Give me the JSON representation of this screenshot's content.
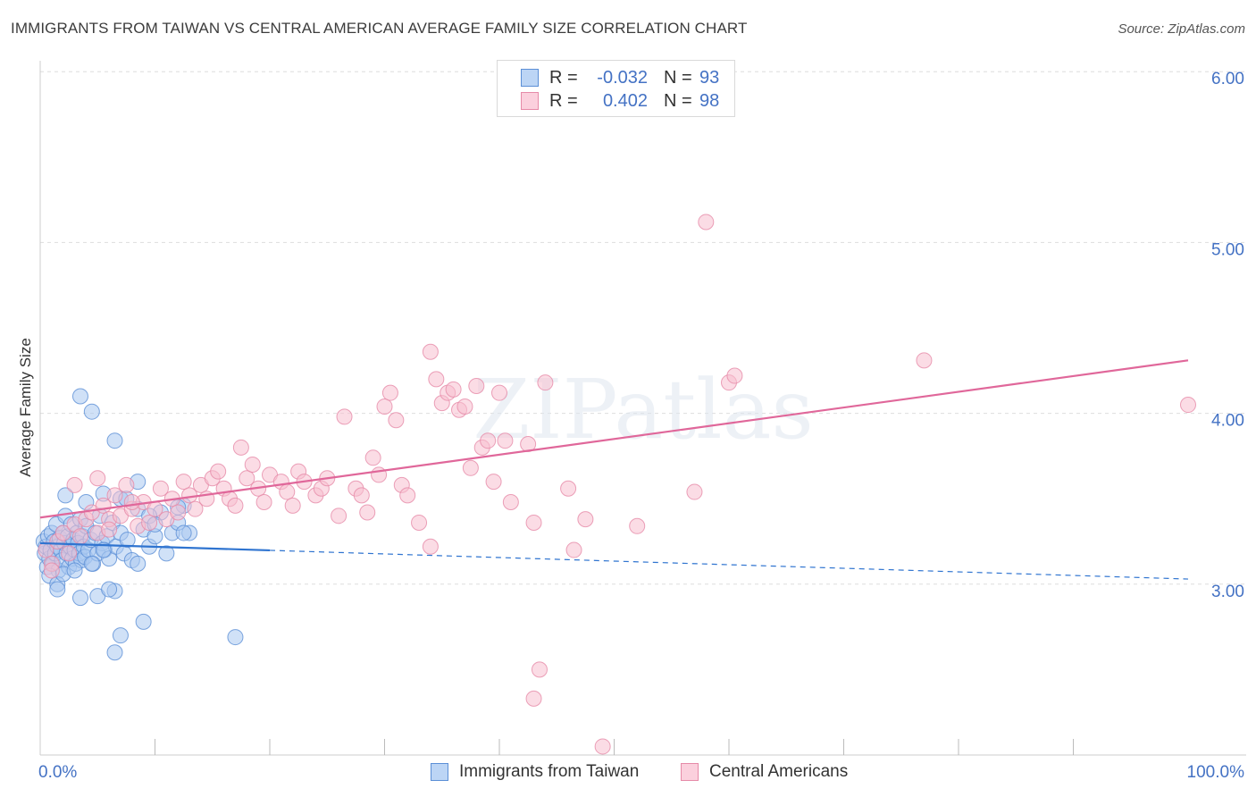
{
  "title": "IMMIGRANTS FROM TAIWAN VS CENTRAL AMERICAN AVERAGE FAMILY SIZE CORRELATION CHART",
  "source": "Source: ZipAtlas.com",
  "watermark": "ZIPatlas",
  "legend": {
    "rows": [
      {
        "r_label": "R =",
        "r_value": "-0.032",
        "n_label": "N =",
        "n_value": "93"
      },
      {
        "r_label": "R =",
        "r_value": "0.402",
        "n_label": "N =",
        "n_value": "98"
      }
    ]
  },
  "bottom_legend": [
    "Immigrants from Taiwan",
    "Central Americans"
  ],
  "colors": {
    "taiwan_fill": "#a9c8f0",
    "taiwan_stroke": "#5b8fd6",
    "taiwan_line": "#2f74d0",
    "central_fill": "#f8bfd0",
    "central_stroke": "#e68aa8",
    "central_line": "#e0679a",
    "tick_label": "#4472c4",
    "grid": "#dddddd"
  },
  "chart_data": {
    "type": "scatter",
    "title": "IMMIGRANTS FROM TAIWAN VS CENTRAL AMERICAN AVERAGE FAMILY SIZE CORRELATION CHART",
    "xlabel": "",
    "ylabel": "Average Family Size",
    "xlim": [
      0,
      100
    ],
    "ylim": [
      2.0,
      6.1
    ],
    "x_tick_labels": [
      "0.0%",
      "100.0%"
    ],
    "y_ticks": [
      3.0,
      4.0,
      5.0,
      6.0
    ],
    "y_tick_labels": [
      "3.00",
      "4.00",
      "5.00",
      "6.00"
    ],
    "grid": true,
    "legend_position": "top-center",
    "series": [
      {
        "name": "Immigrants from Taiwan",
        "r": -0.032,
        "n": 93,
        "trend": {
          "x0": 0,
          "y0": 3.24,
          "x1": 100,
          "y1": 3.03,
          "solid_until": 20
        },
        "points": [
          [
            0.3,
            3.25
          ],
          [
            0.4,
            3.18
          ],
          [
            0.5,
            3.22
          ],
          [
            0.6,
            3.1
          ],
          [
            0.7,
            3.28
          ],
          [
            0.8,
            3.15
          ],
          [
            0.9,
            3.2
          ],
          [
            1.0,
            3.3
          ],
          [
            1.1,
            3.12
          ],
          [
            1.2,
            3.25
          ],
          [
            1.3,
            3.18
          ],
          [
            1.4,
            3.35
          ],
          [
            1.5,
            3.22
          ],
          [
            1.6,
            3.08
          ],
          [
            1.7,
            3.27
          ],
          [
            1.8,
            3.2
          ],
          [
            1.9,
            3.14
          ],
          [
            2.0,
            3.3
          ],
          [
            2.1,
            3.24
          ],
          [
            2.2,
            3.4
          ],
          [
            2.3,
            3.18
          ],
          [
            2.4,
            3.28
          ],
          [
            2.5,
            3.1
          ],
          [
            2.6,
            3.22
          ],
          [
            2.7,
            3.35
          ],
          [
            2.8,
            3.15
          ],
          [
            2.9,
            3.26
          ],
          [
            3.0,
            3.2
          ],
          [
            3.1,
            3.12
          ],
          [
            3.2,
            3.3
          ],
          [
            3.3,
            3.24
          ],
          [
            3.4,
            3.18
          ],
          [
            3.5,
            3.38
          ],
          [
            3.6,
            3.14
          ],
          [
            3.7,
            3.28
          ],
          [
            3.8,
            3.22
          ],
          [
            3.9,
            3.16
          ],
          [
            4.0,
            3.34
          ],
          [
            4.2,
            3.2
          ],
          [
            4.4,
            3.26
          ],
          [
            4.6,
            3.12
          ],
          [
            4.8,
            3.3
          ],
          [
            5.0,
            3.18
          ],
          [
            5.2,
            3.4
          ],
          [
            5.4,
            3.24
          ],
          [
            5.6,
            3.2
          ],
          [
            5.8,
            3.28
          ],
          [
            6.0,
            3.15
          ],
          [
            6.3,
            3.36
          ],
          [
            6.6,
            3.22
          ],
          [
            7.0,
            3.3
          ],
          [
            7.3,
            3.18
          ],
          [
            7.6,
            3.26
          ],
          [
            8.0,
            3.14
          ],
          [
            8.5,
            3.44
          ],
          [
            9.0,
            3.32
          ],
          [
            9.5,
            3.22
          ],
          [
            10.0,
            3.28
          ],
          [
            10.5,
            3.42
          ],
          [
            11.0,
            3.18
          ],
          [
            11.5,
            3.3
          ],
          [
            12.0,
            3.36
          ],
          [
            12.5,
            3.46
          ],
          [
            13.0,
            3.3
          ],
          [
            0.8,
            3.05
          ],
          [
            1.5,
            3.0
          ],
          [
            2.0,
            3.06
          ],
          [
            3.0,
            3.08
          ],
          [
            4.5,
            3.12
          ],
          [
            5.5,
            3.2
          ],
          [
            2.2,
            3.52
          ],
          [
            4.0,
            3.48
          ],
          [
            5.5,
            3.53
          ],
          [
            7.0,
            3.5
          ],
          [
            8.5,
            3.6
          ],
          [
            9.5,
            3.4
          ],
          [
            1.5,
            2.97
          ],
          [
            3.5,
            2.92
          ],
          [
            5.0,
            2.93
          ],
          [
            6.5,
            2.96
          ],
          [
            8.5,
            3.12
          ],
          [
            10.0,
            3.35
          ],
          [
            12.5,
            3.3
          ],
          [
            3.5,
            4.1
          ],
          [
            4.5,
            4.01
          ],
          [
            6.5,
            3.84
          ],
          [
            7.5,
            3.5
          ],
          [
            6.0,
            2.97
          ],
          [
            9.0,
            2.78
          ],
          [
            7.0,
            2.7
          ],
          [
            6.5,
            2.6
          ],
          [
            17.0,
            2.69
          ],
          [
            12.0,
            3.45
          ]
        ]
      },
      {
        "name": "Central Americans",
        "r": 0.402,
        "n": 98,
        "trend": {
          "x0": 0,
          "y0": 3.39,
          "x1": 100,
          "y1": 4.31
        },
        "points": [
          [
            0.5,
            3.2
          ],
          [
            1.0,
            3.12
          ],
          [
            1.5,
            3.25
          ],
          [
            2.0,
            3.3
          ],
          [
            2.5,
            3.18
          ],
          [
            3.0,
            3.35
          ],
          [
            3.5,
            3.28
          ],
          [
            4.0,
            3.38
          ],
          [
            4.5,
            3.42
          ],
          [
            5.0,
            3.3
          ],
          [
            5.5,
            3.46
          ],
          [
            6.0,
            3.38
          ],
          [
            6.5,
            3.52
          ],
          [
            7.0,
            3.4
          ],
          [
            7.5,
            3.58
          ],
          [
            8.0,
            3.44
          ],
          [
            8.5,
            3.34
          ],
          [
            9.0,
            3.48
          ],
          [
            9.5,
            3.36
          ],
          [
            10.0,
            3.44
          ],
          [
            10.5,
            3.56
          ],
          [
            11.0,
            3.38
          ],
          [
            11.5,
            3.5
          ],
          [
            12.0,
            3.42
          ],
          [
            12.5,
            3.6
          ],
          [
            13.0,
            3.52
          ],
          [
            13.5,
            3.44
          ],
          [
            14.0,
            3.58
          ],
          [
            14.5,
            3.5
          ],
          [
            15.0,
            3.62
          ],
          [
            15.5,
            3.66
          ],
          [
            16.0,
            3.56
          ],
          [
            16.5,
            3.5
          ],
          [
            17.0,
            3.46
          ],
          [
            17.5,
            3.8
          ],
          [
            18.0,
            3.62
          ],
          [
            18.5,
            3.7
          ],
          [
            19.0,
            3.56
          ],
          [
            19.5,
            3.48
          ],
          [
            20.0,
            3.64
          ],
          [
            21.0,
            3.6
          ],
          [
            21.5,
            3.54
          ],
          [
            22.0,
            3.46
          ],
          [
            22.5,
            3.66
          ],
          [
            23.0,
            3.6
          ],
          [
            24.0,
            3.52
          ],
          [
            24.5,
            3.56
          ],
          [
            25.0,
            3.62
          ],
          [
            26.0,
            3.4
          ],
          [
            26.5,
            3.98
          ],
          [
            27.5,
            3.56
          ],
          [
            28.0,
            3.52
          ],
          [
            28.5,
            3.42
          ],
          [
            29.0,
            3.74
          ],
          [
            29.5,
            3.64
          ],
          [
            30.0,
            4.04
          ],
          [
            30.5,
            4.12
          ],
          [
            31.0,
            3.96
          ],
          [
            31.5,
            3.58
          ],
          [
            32.0,
            3.52
          ],
          [
            33.0,
            3.36
          ],
          [
            34.0,
            4.36
          ],
          [
            34.5,
            4.2
          ],
          [
            35.0,
            4.06
          ],
          [
            35.5,
            4.12
          ],
          [
            36.0,
            4.14
          ],
          [
            36.5,
            4.02
          ],
          [
            37.0,
            4.04
          ],
          [
            37.5,
            3.68
          ],
          [
            38.0,
            4.16
          ],
          [
            38.5,
            3.8
          ],
          [
            39.0,
            3.84
          ],
          [
            39.5,
            3.6
          ],
          [
            40.0,
            4.12
          ],
          [
            40.5,
            3.84
          ],
          [
            41.0,
            3.48
          ],
          [
            42.5,
            3.82
          ],
          [
            44.0,
            4.18
          ],
          [
            46.0,
            3.56
          ],
          [
            47.5,
            3.38
          ],
          [
            52.0,
            3.34
          ],
          [
            57.0,
            3.54
          ],
          [
            58.0,
            5.12
          ],
          [
            60.0,
            4.18
          ],
          [
            60.5,
            4.22
          ],
          [
            77.0,
            4.31
          ],
          [
            100.0,
            4.05
          ],
          [
            3.0,
            3.58
          ],
          [
            5.0,
            3.62
          ],
          [
            8.0,
            3.48
          ],
          [
            6.0,
            3.32
          ],
          [
            1.0,
            3.08
          ],
          [
            34.0,
            3.22
          ],
          [
            43.0,
            3.36
          ],
          [
            46.5,
            3.2
          ],
          [
            43.5,
            2.5
          ],
          [
            43.0,
            2.33
          ],
          [
            49.0,
            2.05
          ]
        ]
      }
    ]
  }
}
